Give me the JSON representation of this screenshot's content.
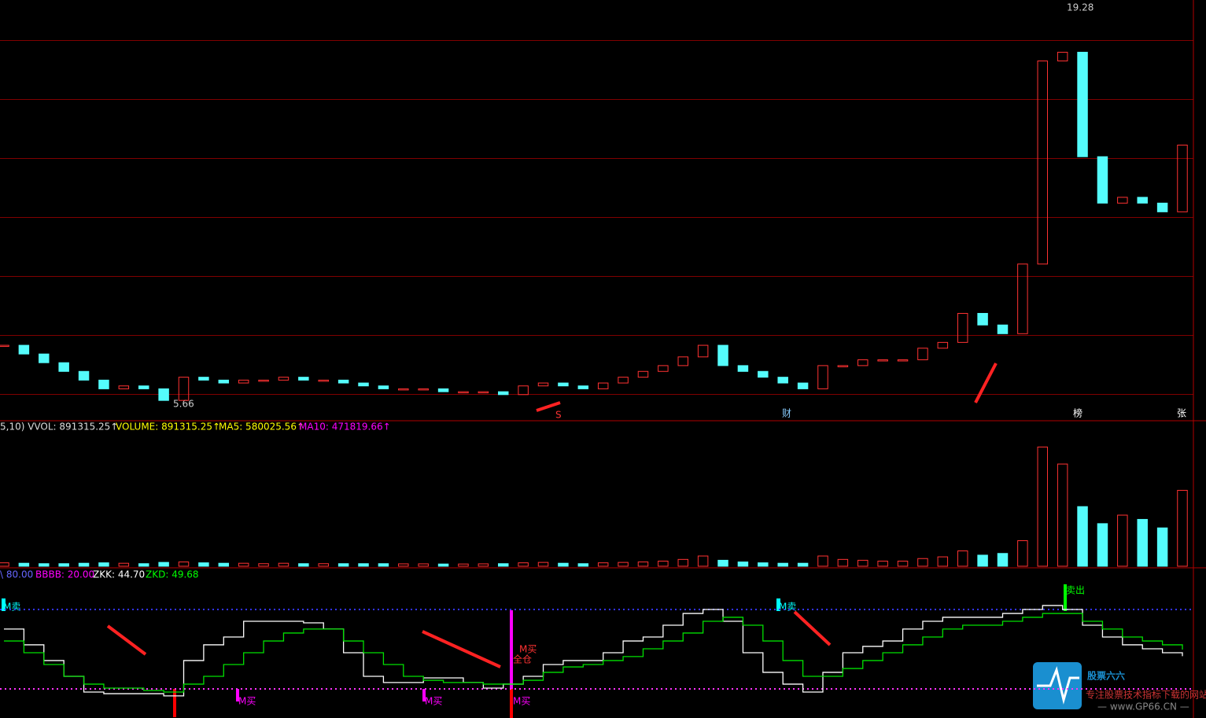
{
  "chart_data": [
    {
      "type": "candle",
      "name": "price",
      "ylim": [
        5.1,
        19.6
      ],
      "up_color": "#ff3232",
      "down_color": "#54fcfc",
      "values": [
        7.7,
        7.4,
        7.1,
        6.8,
        6.5,
        6.2,
        6.3,
        6.2,
        5.8,
        6.6,
        6.5,
        6.4,
        6.5,
        6.5,
        6.6,
        6.5,
        6.5,
        6.4,
        6.3,
        6.2,
        6.2,
        6.2,
        6.1,
        6.1,
        6.1,
        6.0,
        6.3,
        6.4,
        6.3,
        6.2,
        6.4,
        6.6,
        6.8,
        7.0,
        7.3,
        7.7,
        7.0,
        6.8,
        6.6,
        6.4,
        6.2,
        7.0,
        7.0,
        7.2,
        7.2,
        7.2,
        7.6,
        7.8,
        8.8,
        8.4,
        8.1,
        10.5,
        17.5,
        17.8,
        14.2,
        12.6,
        12.8,
        12.6,
        12.3,
        14.6
      ]
    },
    {
      "type": "bar",
      "name": "volume",
      "ylim": [
        0,
        1570000
      ],
      "up_color": "#ff3232",
      "down_color": "#54fcfc",
      "legend": [
        "5,10) VVOL: 891315.25↑",
        "VOLUME: 891315.25↑",
        "MA5: 580025.56↑",
        "MA10: 471819.66↑"
      ],
      "values": [
        40000,
        35000,
        30000,
        30000,
        35000,
        40000,
        35000,
        30000,
        45000,
        50000,
        40000,
        35000,
        35000,
        30000,
        35000,
        30000,
        30000,
        30000,
        30000,
        30000,
        28000,
        28000,
        26000,
        26000,
        28000,
        30000,
        40000,
        45000,
        35000,
        30000,
        40000,
        45000,
        50000,
        60000,
        80000,
        120000,
        70000,
        50000,
        40000,
        35000,
        35000,
        120000,
        80000,
        70000,
        60000,
        60000,
        90000,
        110000,
        180000,
        130000,
        150000,
        300000,
        1400000,
        1200000,
        700000,
        500000,
        600000,
        550000,
        450000,
        891315.25
      ]
    },
    {
      "type": "line",
      "name": "indicator",
      "ylim": [
        -1.4,
        109.7
      ],
      "legend": [
        "\\ 80.00",
        "BBBB: 20.00",
        "ZKK: 44.70",
        "ZKD: 49.68"
      ],
      "ref_lines": [
        {
          "value": 80,
          "color": "#3333ff"
        },
        {
          "value": 20,
          "color": "#ff33ff"
        }
      ],
      "series": [
        {
          "name": "ZKK",
          "color": "#ffffff",
          "values": [
            65.2,
            53.3,
            41.4,
            29.5,
            17.6,
            16.4,
            16.4,
            16.4,
            14.7,
            41.4,
            53.3,
            59.2,
            71.1,
            71.1,
            71.1,
            69.9,
            65.2,
            47.3,
            29.5,
            24.8,
            24.8,
            28.3,
            28.3,
            24.8,
            20.6,
            23.6,
            29.5,
            38.4,
            41.4,
            41.4,
            47.3,
            56.2,
            59.2,
            68.1,
            77.0,
            80.0,
            71.1,
            47.3,
            32.5,
            23.6,
            17.6,
            32.5,
            47.3,
            52.1,
            56.2,
            65.2,
            71.1,
            74.1,
            74.1,
            74.1,
            77.0,
            80.0,
            83.0,
            80.0,
            68.1,
            59.2,
            53.3,
            50.3,
            47.3,
            44.7
          ]
        },
        {
          "name": "ZKD",
          "color": "#00e000",
          "values": [
            56.2,
            47.3,
            38.4,
            29.5,
            23.6,
            20.6,
            20.6,
            18.8,
            17.6,
            23.6,
            29.5,
            38.4,
            47.3,
            56.2,
            62.2,
            65.2,
            65.2,
            56.2,
            47.3,
            38.4,
            29.5,
            26.5,
            24.8,
            24.8,
            23.6,
            23.6,
            26.5,
            32.5,
            36.6,
            38.4,
            41.4,
            44.4,
            50.3,
            56.2,
            62.2,
            71.1,
            74.1,
            68.1,
            56.2,
            41.4,
            29.5,
            29.5,
            35.4,
            41.4,
            47.3,
            53.3,
            59.2,
            65.2,
            68.1,
            68.1,
            71.1,
            74.1,
            77.0,
            77.0,
            71.1,
            65.2,
            59.2,
            56.2,
            53.3,
            49.68
          ]
        }
      ]
    }
  ],
  "annotations": {
    "high": "19.28",
    "low": "5.66",
    "markers": [
      "S",
      "财",
      "榜",
      "张"
    ],
    "signals": [
      "M卖",
      "M卖",
      "M买",
      "M买",
      "M买",
      "M买",
      "全仓",
      "卖出"
    ]
  },
  "logo": {
    "title": "股票六六",
    "subtitle": "专注股票技术指标下载的网站",
    "url": "— www.GP66.CN —"
  }
}
